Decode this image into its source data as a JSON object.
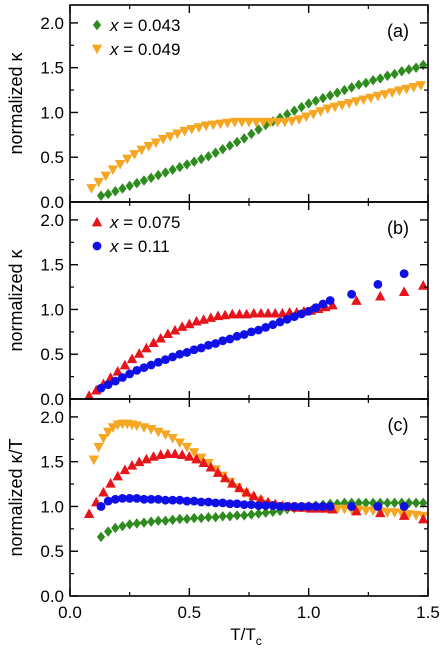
{
  "figure": {
    "xlabel": "T/T",
    "xlabel_sub": "c",
    "xticks": [
      "0.0",
      "0.5",
      "1.0",
      "1.5"
    ]
  },
  "chart_data": [
    {
      "type": "scatter",
      "panel_label": "(a)",
      "ylabel": "normalized κ",
      "xlim": [
        0.0,
        1.5
      ],
      "ylim": [
        0.0,
        2.2
      ],
      "yticks": [
        "0.0",
        "0.5",
        "1.0",
        "1.5",
        "2.0"
      ],
      "legend_position": "top-left",
      "series": [
        {
          "name_prefix": "x",
          "name_value": " = 0.043",
          "color": "#2e8b1e",
          "marker": "diamond",
          "x": [
            0.13,
            0.16,
            0.19,
            0.22,
            0.25,
            0.28,
            0.31,
            0.34,
            0.37,
            0.4,
            0.43,
            0.46,
            0.49,
            0.52,
            0.55,
            0.58,
            0.61,
            0.64,
            0.67,
            0.7,
            0.73,
            0.76,
            0.79,
            0.82,
            0.85,
            0.88,
            0.91,
            0.94,
            0.97,
            1.0,
            1.03,
            1.06,
            1.09,
            1.12,
            1.15,
            1.18,
            1.21,
            1.24,
            1.27,
            1.3,
            1.33,
            1.36,
            1.39,
            1.42,
            1.45,
            1.48
          ],
          "y": [
            0.07,
            0.09,
            0.12,
            0.15,
            0.18,
            0.21,
            0.24,
            0.27,
            0.3,
            0.33,
            0.36,
            0.39,
            0.42,
            0.45,
            0.48,
            0.51,
            0.55,
            0.59,
            0.63,
            0.67,
            0.71,
            0.76,
            0.81,
            0.86,
            0.9,
            0.94,
            0.98,
            1.02,
            1.06,
            1.1,
            1.13,
            1.16,
            1.19,
            1.22,
            1.25,
            1.28,
            1.31,
            1.33,
            1.36,
            1.38,
            1.41,
            1.43,
            1.46,
            1.48,
            1.5,
            1.53
          ]
        },
        {
          "name_prefix": "x",
          "name_value": " = 0.049",
          "color": "#f5a623",
          "marker": "triangle-down",
          "x": [
            0.09,
            0.12,
            0.15,
            0.18,
            0.21,
            0.24,
            0.27,
            0.3,
            0.33,
            0.36,
            0.39,
            0.42,
            0.45,
            0.48,
            0.51,
            0.54,
            0.57,
            0.6,
            0.63,
            0.66,
            0.69,
            0.72,
            0.75,
            0.78,
            0.81,
            0.84,
            0.87,
            0.9,
            0.93,
            0.96,
            0.99,
            1.02,
            1.05,
            1.08,
            1.11,
            1.14,
            1.17,
            1.2,
            1.23,
            1.26,
            1.29,
            1.32,
            1.35,
            1.38,
            1.41,
            1.44,
            1.47
          ],
          "y": [
            0.15,
            0.22,
            0.29,
            0.36,
            0.42,
            0.48,
            0.53,
            0.58,
            0.62,
            0.66,
            0.7,
            0.73,
            0.76,
            0.79,
            0.81,
            0.83,
            0.85,
            0.86,
            0.87,
            0.88,
            0.89,
            0.89,
            0.89,
            0.89,
            0.89,
            0.89,
            0.89,
            0.89,
            0.9,
            0.92,
            0.95,
            0.98,
            1.01,
            1.04,
            1.06,
            1.08,
            1.1,
            1.12,
            1.14,
            1.16,
            1.18,
            1.2,
            1.22,
            1.24,
            1.26,
            1.28,
            1.3
          ]
        }
      ]
    },
    {
      "type": "scatter",
      "panel_label": "(b)",
      "ylabel": "normalized κ",
      "xlim": [
        0.0,
        1.5
      ],
      "ylim": [
        0.0,
        2.2
      ],
      "yticks": [
        "0.0",
        "0.5",
        "1.0",
        "1.5",
        "2.0"
      ],
      "legend_position": "top-left",
      "series": [
        {
          "name_prefix": "x",
          "name_value": " = 0.075",
          "color": "#e8141b",
          "marker": "triangle-up",
          "x": [
            0.08,
            0.11,
            0.14,
            0.17,
            0.2,
            0.23,
            0.26,
            0.29,
            0.32,
            0.35,
            0.38,
            0.41,
            0.44,
            0.47,
            0.5,
            0.53,
            0.56,
            0.59,
            0.62,
            0.65,
            0.68,
            0.71,
            0.74,
            0.77,
            0.8,
            0.83,
            0.86,
            0.89,
            0.92,
            0.95,
            0.98,
            1.01,
            1.04,
            1.07,
            1.1,
            1.2,
            1.3,
            1.4,
            1.48
          ],
          "y": [
            0.04,
            0.1,
            0.17,
            0.24,
            0.31,
            0.38,
            0.45,
            0.51,
            0.57,
            0.63,
            0.68,
            0.73,
            0.77,
            0.81,
            0.84,
            0.87,
            0.89,
            0.91,
            0.93,
            0.94,
            0.95,
            0.95,
            0.95,
            0.96,
            0.96,
            0.96,
            0.96,
            0.96,
            0.97,
            0.97,
            0.98,
            0.99,
            1.01,
            1.03,
            1.05,
            1.1,
            1.15,
            1.2,
            1.27
          ]
        },
        {
          "name_prefix": "x",
          "name_value": " = 0.11",
          "color": "#1010e6",
          "marker": "circle",
          "x": [
            0.13,
            0.16,
            0.19,
            0.22,
            0.25,
            0.28,
            0.31,
            0.34,
            0.37,
            0.4,
            0.43,
            0.46,
            0.49,
            0.52,
            0.55,
            0.58,
            0.61,
            0.64,
            0.67,
            0.7,
            0.73,
            0.76,
            0.79,
            0.82,
            0.85,
            0.88,
            0.91,
            0.94,
            0.97,
            1.0,
            1.03,
            1.06,
            1.09,
            1.18,
            1.29,
            1.4
          ],
          "y": [
            0.12,
            0.16,
            0.2,
            0.24,
            0.28,
            0.32,
            0.35,
            0.38,
            0.41,
            0.44,
            0.47,
            0.5,
            0.52,
            0.55,
            0.57,
            0.6,
            0.62,
            0.65,
            0.67,
            0.7,
            0.72,
            0.75,
            0.77,
            0.8,
            0.83,
            0.86,
            0.89,
            0.92,
            0.95,
            0.98,
            1.02,
            1.06,
            1.1,
            1.17,
            1.28,
            1.4
          ]
        }
      ]
    },
    {
      "type": "scatter",
      "panel_label": "(c)",
      "ylabel": "normalized κ/T",
      "xlim": [
        0.0,
        1.5
      ],
      "ylim": [
        0.0,
        2.2
      ],
      "yticks": [
        "0.0",
        "0.5",
        "1.0",
        "1.5",
        "2.0"
      ],
      "legend_position": "none",
      "series": [
        {
          "name_prefix": "x",
          "name_value": " = 0.043",
          "color": "#2e8b1e",
          "marker": "diamond",
          "x": [
            0.13,
            0.16,
            0.19,
            0.22,
            0.25,
            0.28,
            0.31,
            0.34,
            0.37,
            0.4,
            0.43,
            0.46,
            0.49,
            0.52,
            0.55,
            0.58,
            0.61,
            0.64,
            0.67,
            0.7,
            0.73,
            0.76,
            0.79,
            0.82,
            0.85,
            0.88,
            0.91,
            0.94,
            0.97,
            1.0,
            1.03,
            1.06,
            1.09,
            1.12,
            1.15,
            1.18,
            1.21,
            1.24,
            1.27,
            1.3,
            1.33,
            1.36,
            1.39,
            1.42,
            1.45,
            1.48
          ],
          "y": [
            0.66,
            0.72,
            0.76,
            0.78,
            0.8,
            0.81,
            0.82,
            0.83,
            0.84,
            0.84,
            0.85,
            0.86,
            0.86,
            0.87,
            0.87,
            0.88,
            0.88,
            0.89,
            0.89,
            0.9,
            0.9,
            0.91,
            0.92,
            0.93,
            0.94,
            0.95,
            0.97,
            0.98,
            0.99,
            1.0,
            1.01,
            1.02,
            1.03,
            1.03,
            1.04,
            1.04,
            1.04,
            1.04,
            1.04,
            1.04,
            1.04,
            1.04,
            1.04,
            1.04,
            1.04,
            1.04
          ]
        },
        {
          "name_prefix": "x",
          "name_value": " = 0.049",
          "color": "#f5a623",
          "marker": "triangle-down",
          "x": [
            0.1,
            0.12,
            0.14,
            0.16,
            0.18,
            0.2,
            0.22,
            0.24,
            0.26,
            0.28,
            0.31,
            0.34,
            0.37,
            0.4,
            0.43,
            0.46,
            0.49,
            0.52,
            0.55,
            0.58,
            0.61,
            0.64,
            0.67,
            0.7,
            0.73,
            0.76,
            0.79,
            0.82,
            0.85,
            0.88,
            0.91,
            0.94,
            0.97,
            1.0,
            1.03,
            1.06,
            1.09,
            1.12,
            1.15,
            1.18,
            1.21,
            1.24,
            1.27,
            1.3,
            1.33,
            1.36,
            1.39,
            1.42,
            1.45,
            1.48
          ],
          "y": [
            1.52,
            1.66,
            1.76,
            1.83,
            1.88,
            1.91,
            1.92,
            1.92,
            1.91,
            1.9,
            1.88,
            1.86,
            1.83,
            1.8,
            1.76,
            1.71,
            1.66,
            1.6,
            1.54,
            1.48,
            1.41,
            1.34,
            1.27,
            1.21,
            1.15,
            1.1,
            1.06,
            1.03,
            1.01,
            1.0,
            0.99,
            0.99,
            0.99,
            0.99,
            0.99,
            0.98,
            0.98,
            0.97,
            0.97,
            0.96,
            0.96,
            0.95,
            0.95,
            0.94,
            0.93,
            0.93,
            0.92,
            0.91,
            0.9,
            0.89
          ]
        },
        {
          "name_prefix": "x",
          "name_value": " = 0.075",
          "color": "#e8141b",
          "marker": "triangle-up",
          "x": [
            0.08,
            0.11,
            0.14,
            0.17,
            0.2,
            0.23,
            0.26,
            0.29,
            0.32,
            0.35,
            0.38,
            0.41,
            0.44,
            0.47,
            0.5,
            0.53,
            0.56,
            0.59,
            0.62,
            0.65,
            0.68,
            0.71,
            0.74,
            0.77,
            0.8,
            0.83,
            0.86,
            0.89,
            0.92,
            0.95,
            0.98,
            1.01,
            1.04,
            1.07,
            1.1,
            1.2,
            1.3,
            1.4,
            1.48
          ],
          "y": [
            0.92,
            1.05,
            1.16,
            1.26,
            1.34,
            1.41,
            1.46,
            1.5,
            1.53,
            1.56,
            1.58,
            1.59,
            1.59,
            1.58,
            1.56,
            1.53,
            1.49,
            1.44,
            1.38,
            1.32,
            1.26,
            1.21,
            1.16,
            1.12,
            1.08,
            1.05,
            1.03,
            1.01,
            1.0,
            0.99,
            0.99,
            0.98,
            0.98,
            0.98,
            0.97,
            0.95,
            0.93,
            0.9,
            0.86
          ]
        },
        {
          "name_prefix": "x",
          "name_value": " = 0.11",
          "color": "#1010e6",
          "marker": "circle",
          "x": [
            0.13,
            0.16,
            0.19,
            0.22,
            0.25,
            0.28,
            0.31,
            0.34,
            0.37,
            0.4,
            0.43,
            0.46,
            0.49,
            0.52,
            0.55,
            0.58,
            0.61,
            0.64,
            0.67,
            0.7,
            0.73,
            0.76,
            0.79,
            0.82,
            0.85,
            0.88,
            0.91,
            0.94,
            0.97,
            1.0,
            1.03,
            1.06,
            1.09,
            1.18,
            1.29,
            1.4
          ],
          "y": [
            1.0,
            1.06,
            1.08,
            1.09,
            1.09,
            1.09,
            1.08,
            1.08,
            1.08,
            1.07,
            1.07,
            1.07,
            1.06,
            1.06,
            1.05,
            1.05,
            1.04,
            1.04,
            1.03,
            1.03,
            1.02,
            1.02,
            1.01,
            1.01,
            1.01,
            1.0,
            1.0,
            1.0,
            1.0,
            1.0,
            1.0,
            1.0,
            1.0,
            1.0,
            1.0,
            1.0
          ]
        }
      ]
    }
  ]
}
